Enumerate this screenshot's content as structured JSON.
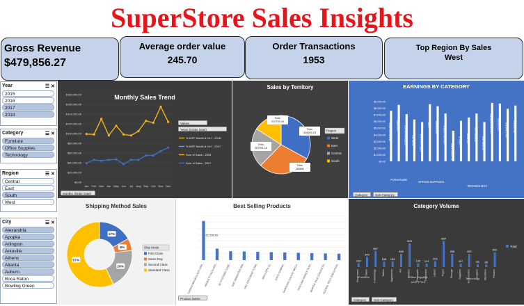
{
  "title": "SuperStore Sales Insights",
  "kpis": {
    "gross": {
      "label": "Gross Revenue",
      "value": "$479,856.27"
    },
    "aov": {
      "label": "Average order value",
      "value": "245.70"
    },
    "orders": {
      "label": "Order Transactions",
      "value": "1953"
    },
    "region": {
      "label": "Top Region By Sales",
      "value": "West"
    }
  },
  "slicers": {
    "year": {
      "header": "Year",
      "items": [
        {
          "label": "2015",
          "sel": false
        },
        {
          "label": "2016",
          "sel": false
        },
        {
          "label": "2017",
          "sel": true
        },
        {
          "label": "2018",
          "sel": true
        }
      ]
    },
    "category": {
      "header": "Category",
      "items": [
        {
          "label": "Furniture",
          "sel": true
        },
        {
          "label": "Office Supplies",
          "sel": true
        },
        {
          "label": "Technology",
          "sel": true
        }
      ]
    },
    "region": {
      "header": "Region",
      "items": [
        {
          "label": "Central",
          "sel": false
        },
        {
          "label": "East",
          "sel": false
        },
        {
          "label": "South",
          "sel": true
        },
        {
          "label": "West",
          "sel": false
        }
      ]
    },
    "city": {
      "header": "City",
      "items": [
        {
          "label": "Alexandria",
          "sel": true
        },
        {
          "label": "Apopka",
          "sel": true
        },
        {
          "label": "Arlington",
          "sel": true
        },
        {
          "label": "Arkoville",
          "sel": true
        },
        {
          "label": "Athens",
          "sel": true
        },
        {
          "label": "Atlanta",
          "sel": true
        },
        {
          "label": "Auburn",
          "sel": true
        },
        {
          "label": "Boca Raton",
          "sel": false
        },
        {
          "label": "Bowling Green",
          "sel": false
        }
      ]
    }
  },
  "monthly": {
    "title": "Monthly Sales Trend",
    "months": [
      "Jan",
      "Feb",
      "Mar",
      "Apr",
      "May",
      "Jun",
      "Jul",
      "Aug",
      "Sep",
      "Oct",
      "Nov",
      "Dec"
    ],
    "yticks": [
      "$0.00",
      "$20,000.00",
      "$40,000.00",
      "$60,000.00",
      "$80,000.00",
      "$100,000.00",
      "$120,000.00",
      "$140,000.00",
      "$160,000.00",
      "$180,000.00"
    ],
    "ymax": 180000,
    "chart_data": {
      "type": "line",
      "x": [
        "Jan",
        "Feb",
        "Mar",
        "Apr",
        "May",
        "Jun",
        "Jul",
        "Aug",
        "Sep",
        "Oct",
        "Nov",
        "Dec"
      ],
      "series": [
        {
          "name": "Sum of Sales - 2018",
          "color": "#f5b31a",
          "values": [
            99000,
            98000,
            130000,
            96000,
            116000,
            98000,
            96000,
            105000,
            126000,
            122000,
            155000,
            124000
          ]
        },
        {
          "name": "Sum of Sales - 2017",
          "color": "#3e6fc4",
          "values": [
            39000,
            46000,
            44000,
            46000,
            47000,
            37000,
            46000,
            46000,
            55000,
            55000,
            64000,
            71000
          ]
        }
      ]
    },
    "legend_items": [
      "% DIFF Month & YoY - 2018",
      "% DIFF Month & YoY - 2017",
      "Sum of Sales - 2018",
      "Sum of Sales - 2017"
    ],
    "legend_colors": [
      "#f5b31a",
      "#7a9bd2",
      "#f5b31a",
      "#3e6fc4"
    ],
    "values_tag": "Values",
    "filter_label": "Years (Order Date)",
    "axis_filter": "Months (Order Date)"
  },
  "territory": {
    "title": "Sales by Territory",
    "legend_title": "Region",
    "chart_data": {
      "type": "pie",
      "series": [
        {
          "name": "West",
          "value": 436603.23,
          "color": "#3e6fc4"
        },
        {
          "name": "East",
          "value": 389861,
          "color": "#ed7d31"
        },
        {
          "name": "Central",
          "value": 287951.16,
          "color": "#a5a5a5"
        },
        {
          "name": "South",
          "value": 210700.44,
          "color": "#ffc000"
        }
      ]
    },
    "labels": [
      "Total, 436603.23",
      "Total, 389861",
      "Total, 287951.16",
      "Total, 210700.44"
    ]
  },
  "earnings": {
    "title": "EARNINGS BY CATEGORY",
    "ytick_labels": [
      "$0.00",
      "$1,000.00",
      "$2,000.00",
      "$3,000.00",
      "$4,000.00",
      "$5,000.00",
      "$6,000.00",
      "$7,000.00",
      "$8,000.00",
      "$9,000.00"
    ],
    "chart_data": {
      "type": "bar",
      "categories": [
        "BOOKCASES",
        "CHAIRS",
        "FURNISHINGS",
        "TABLES",
        "APPLIANCES",
        "ART",
        "BINDERS",
        "ENVELOPES",
        "FASTENERS",
        "LABELS",
        "PAPER",
        "STORAGE",
        "SUPPLIES",
        "ACCESSORIES",
        "COPIERS",
        "MACHINES",
        "PHONES"
      ],
      "values": [
        7600,
        8500,
        7100,
        6300,
        5900,
        8600,
        8300,
        7200,
        4600,
        6100,
        6600,
        7200,
        5900,
        8800,
        8700,
        7900,
        8400
      ]
    },
    "group_labels": [
      "FURNITURE",
      "OFFICE SUPPLIES",
      "TECHNOLOGY"
    ],
    "ctl1": "Category",
    "ctl2": "Sub-Category"
  },
  "shipping": {
    "title": "Shipping Method Sales",
    "legend_title": "Ship Mode",
    "chart_data": {
      "type": "pie",
      "series": [
        {
          "name": "First Class",
          "pct": 17,
          "color": "#3e6fc4"
        },
        {
          "name": "Same Day",
          "pct": 6,
          "color": "#ed7d31"
        },
        {
          "name": "Second Class",
          "pct": 20,
          "color": "#a5a5a5"
        },
        {
          "name": "Standard Class",
          "pct": 57,
          "color": "#ffc000"
        }
      ]
    },
    "labels": [
      "17%",
      "6%",
      "20%",
      "57%"
    ]
  },
  "best": {
    "title": "Best Selling Products",
    "chart_data": {
      "type": "bar",
      "categories": [
        "CANON IMAGECLASS 2200...",
        "HEWLETT PACKARD...",
        "3D SYSTEMS CUBE...",
        "GBC IBIMASTER 500...",
        "GBC DOCUBIND TL300...",
        "IBICO EPK-21...",
        "ASUS GAMING...",
        "SAMSUNG GALAXY MEGA...",
        "HON 5400 SERIES TASK...",
        "MARTIN YALE CHADLESS...",
        "GLOBAL TROY EXECUTIVE..."
      ],
      "values": [
        61599.82,
        18000,
        14000,
        13500,
        13000,
        12500,
        12000,
        11500,
        11000,
        10500,
        10000
      ]
    },
    "value_label": "61,599.82",
    "filter": "Product Name"
  },
  "volume": {
    "title": "Category Volume",
    "chart_data": {
      "type": "bar",
      "categories": [
        "Bookcases",
        "Chairs",
        "Furnishings",
        "Tables",
        "Appliances",
        "Art",
        "Binders",
        "Envelopes",
        "Fasteners",
        "Labels",
        "Paper",
        "Storage",
        "Supplies",
        "Accessories",
        "Copiers",
        "Machines",
        "Phones"
      ],
      "values": [
        133,
        349,
        557,
        188,
        196,
        458,
        820,
        132,
        121,
        203,
        899,
        458,
        117,
        453,
        95,
        85,
        510
      ]
    },
    "group_labels": [
      "Furniture",
      "Office Supplies",
      "Technology"
    ],
    "axis_title": "AXIS TITLE",
    "legend": "Total",
    "ctl1": "Category",
    "ctl2": "Sub-Category"
  }
}
